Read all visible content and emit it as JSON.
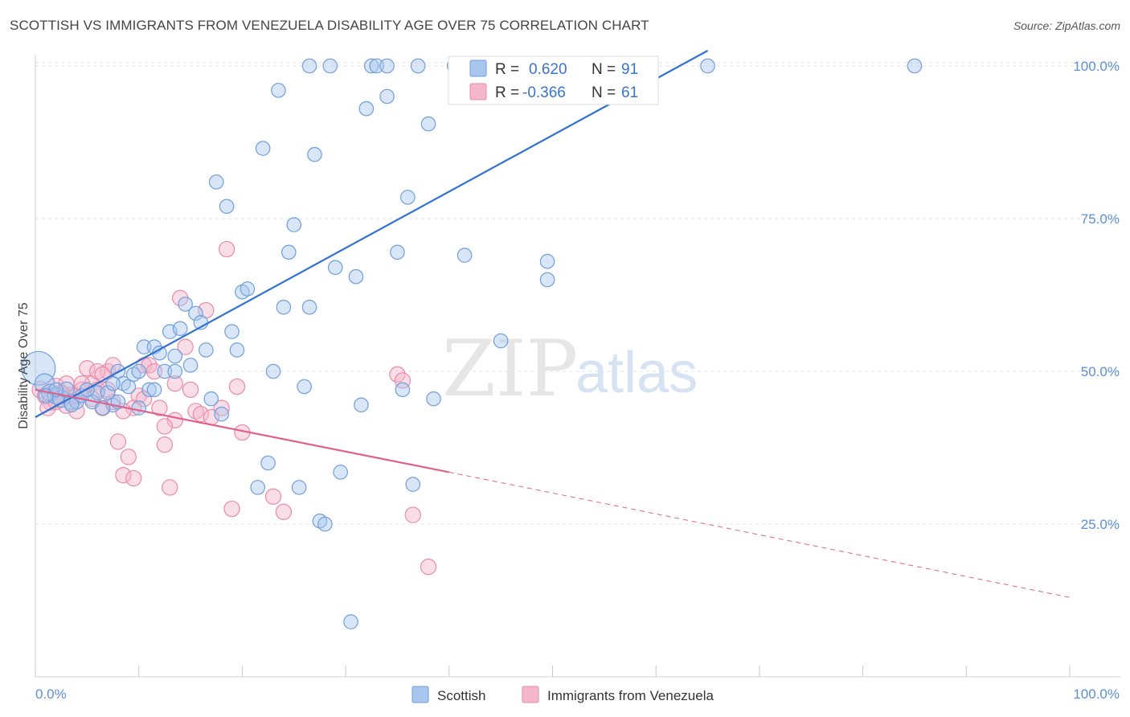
{
  "title": "SCOTTISH VS IMMIGRANTS FROM VENEZUELA DISABILITY AGE OVER 75 CORRELATION CHART",
  "source": "Source: ZipAtlas.com",
  "watermark": {
    "zip": "ZIP",
    "atlas": "atlas"
  },
  "legend": {
    "r_label": "R =",
    "n_label": "N =",
    "entries": [
      {
        "name": "Scottish",
        "r": "0.620",
        "n": "91"
      },
      {
        "name": "Immigrants from Venezuela",
        "r": "-0.366",
        "n": "61"
      }
    ]
  },
  "colors": {
    "blue_fill": "#a9c7ee",
    "blue_stroke": "#6f9fdc",
    "blue_line": "#2f72d0",
    "pink_fill": "#f4b6ca",
    "pink_stroke": "#ea8aaa",
    "pink_line": "#e0608e",
    "grid": "#e3e3e3",
    "tick_text": "#5b8fd6"
  },
  "chart_data": {
    "type": "scatter",
    "title": "SCOTTISH VS IMMIGRANTS FROM VENEZUELA DISABILITY AGE OVER 75 CORRELATION CHART",
    "xlabel": "",
    "ylabel": "Disability Age Over 75",
    "xlim": [
      0,
      100
    ],
    "ylim": [
      0,
      102
    ],
    "x_tick_labels": [
      "0.0%",
      "100.0%"
    ],
    "y_ticks": [
      25,
      50,
      75,
      100
    ],
    "y_tick_labels": [
      "25.0%",
      "50.0%",
      "75.0%",
      "100.0%"
    ],
    "grid": true,
    "legend_position": "top-center",
    "series": [
      {
        "name": "Scottish",
        "r": 0.62,
        "n": 91,
        "trend": {
          "x0": 0,
          "y0": 42.5,
          "x1": 65,
          "y1": 102.5
        },
        "points": [
          [
            0.3,
            50.5,
            24
          ],
          [
            0.9,
            48,
            14
          ],
          [
            1.4,
            46.5,
            12
          ],
          [
            2,
            46,
            12
          ],
          [
            2.5,
            45.5,
            12
          ],
          [
            3,
            47,
            11
          ],
          [
            3.5,
            45,
            11
          ],
          [
            4,
            45,
            10
          ],
          [
            4.5,
            46,
            10
          ],
          [
            5.5,
            45,
            10
          ],
          [
            6,
            46.5,
            10
          ],
          [
            7,
            46.5,
            10
          ],
          [
            7.5,
            44.5,
            10
          ],
          [
            8,
            50,
            10
          ],
          [
            8.5,
            48,
            10
          ],
          [
            9,
            47.5,
            10
          ],
          [
            9.5,
            49.5,
            10
          ],
          [
            10,
            50,
            10
          ],
          [
            10.5,
            54,
            10
          ],
          [
            11,
            47,
            10
          ],
          [
            11.5,
            54,
            10
          ],
          [
            12,
            53,
            10
          ],
          [
            12.5,
            50,
            10
          ],
          [
            13,
            56.5,
            10
          ],
          [
            13.5,
            52.5,
            10
          ],
          [
            14,
            57,
            10
          ],
          [
            14.5,
            61,
            10
          ],
          [
            15,
            51,
            10
          ],
          [
            15.5,
            59.5,
            10
          ],
          [
            16,
            58,
            10
          ],
          [
            16.5,
            53.5,
            10
          ],
          [
            17,
            45.5,
            10
          ],
          [
            17.5,
            81,
            10
          ],
          [
            18,
            43,
            10
          ],
          [
            18.5,
            77,
            10
          ],
          [
            19,
            56.5,
            10
          ],
          [
            19.5,
            53.5,
            10
          ],
          [
            20,
            63,
            10
          ],
          [
            20.5,
            63.5,
            10
          ],
          [
            21.5,
            31,
            10
          ],
          [
            22,
            86.5,
            10
          ],
          [
            22.5,
            35,
            10
          ],
          [
            23,
            50,
            10
          ],
          [
            23.5,
            96,
            10
          ],
          [
            24,
            60.5,
            10
          ],
          [
            24.5,
            69.5,
            10
          ],
          [
            25,
            74,
            10
          ],
          [
            25.5,
            31,
            10
          ],
          [
            26,
            47.5,
            10
          ],
          [
            26.5,
            60.5,
            10
          ],
          [
            27,
            85.5,
            10
          ],
          [
            27.5,
            25.5,
            10
          ],
          [
            28,
            25,
            10
          ],
          [
            28.5,
            100,
            10
          ],
          [
            29,
            67,
            10
          ],
          [
            29.5,
            33.5,
            10
          ],
          [
            30.5,
            9,
            10
          ],
          [
            31,
            65.5,
            10
          ],
          [
            31.5,
            44.5,
            10
          ],
          [
            32,
            93,
            10
          ],
          [
            32.5,
            100,
            10
          ],
          [
            33,
            100,
            10
          ],
          [
            34,
            95,
            10
          ],
          [
            35,
            69.5,
            10
          ],
          [
            35.5,
            47,
            10
          ],
          [
            36,
            78.5,
            10
          ],
          [
            36.5,
            31.5,
            10
          ],
          [
            37,
            100,
            10
          ],
          [
            38,
            90.5,
            10
          ],
          [
            38.5,
            45.5,
            10
          ],
          [
            40.5,
            100,
            10
          ],
          [
            41.5,
            69,
            10
          ],
          [
            45,
            55,
            10
          ],
          [
            47,
            100,
            10
          ],
          [
            49.5,
            68,
            10
          ],
          [
            49.5,
            65,
            10
          ],
          [
            59.5,
            100,
            10
          ],
          [
            65,
            100,
            10
          ],
          [
            85,
            100,
            10
          ],
          [
            26.5,
            100,
            10
          ],
          [
            34,
            100,
            10
          ],
          [
            13.5,
            50,
            10
          ],
          [
            8,
            45,
            10
          ],
          [
            10,
            44,
            10
          ],
          [
            3.5,
            44.5,
            10
          ],
          [
            6.5,
            44,
            10
          ],
          [
            5,
            47,
            10
          ],
          [
            2,
            47,
            10
          ],
          [
            1,
            46,
            10
          ],
          [
            7.5,
            48,
            10
          ],
          [
            11.5,
            47,
            10
          ]
        ]
      },
      {
        "name": "Immigrants from Venezuela",
        "r": -0.366,
        "n": 61,
        "trend": {
          "x0": 0,
          "y0": 47,
          "x1": 40,
          "y1": 33.5,
          "dashed_to_x": 100,
          "dashed_to_y": 13
        },
        "points": [
          [
            0.5,
            47,
            12
          ],
          [
            1,
            46,
            12
          ],
          [
            1.5,
            45,
            12
          ],
          [
            2,
            47.5,
            12
          ],
          [
            2.5,
            46,
            12
          ],
          [
            3,
            44.5,
            12
          ],
          [
            3.5,
            46,
            12
          ],
          [
            4,
            43.5,
            11
          ],
          [
            4.5,
            47,
            11
          ],
          [
            5,
            50.5,
            11
          ],
          [
            5.5,
            48,
            11
          ],
          [
            6,
            47,
            11
          ],
          [
            6.5,
            44,
            11
          ],
          [
            7,
            50,
            11
          ],
          [
            7.5,
            51,
            11
          ],
          [
            8,
            38.5,
            11
          ],
          [
            8.5,
            33,
            11
          ],
          [
            9,
            36,
            11
          ],
          [
            9.5,
            32.5,
            11
          ],
          [
            10,
            46,
            11
          ],
          [
            10.5,
            51,
            11
          ],
          [
            11,
            51,
            11
          ],
          [
            11.5,
            50,
            11
          ],
          [
            12,
            44,
            11
          ],
          [
            12.5,
            38,
            11
          ],
          [
            13,
            31,
            11
          ],
          [
            13.5,
            42,
            11
          ],
          [
            14,
            62,
            11
          ],
          [
            14.5,
            54,
            11
          ],
          [
            15,
            47,
            11
          ],
          [
            15.5,
            43.5,
            11
          ],
          [
            16,
            43,
            11
          ],
          [
            16.5,
            60,
            11
          ],
          [
            17,
            42.5,
            11
          ],
          [
            18,
            44,
            11
          ],
          [
            18.5,
            70,
            11
          ],
          [
            19,
            27.5,
            11
          ],
          [
            19.5,
            47.5,
            11
          ],
          [
            20,
            40,
            11
          ],
          [
            23,
            29.5,
            11
          ],
          [
            24,
            27,
            11
          ],
          [
            35,
            49.5,
            11
          ],
          [
            35.5,
            48.5,
            11
          ],
          [
            36.5,
            26.5,
            11
          ],
          [
            38,
            18,
            11
          ],
          [
            6,
            50,
            11
          ],
          [
            7.5,
            45,
            11
          ],
          [
            9.5,
            44,
            11
          ],
          [
            13.5,
            48,
            11
          ],
          [
            3,
            48,
            11
          ],
          [
            2.5,
            46.5,
            11
          ],
          [
            4,
            46,
            11
          ],
          [
            1.2,
            44,
            11
          ],
          [
            5.5,
            45.5,
            11
          ],
          [
            8.5,
            43.5,
            11
          ],
          [
            10.5,
            45.5,
            11
          ],
          [
            12.5,
            41,
            11
          ],
          [
            6.5,
            49.5,
            11
          ],
          [
            4.5,
            48,
            11
          ],
          [
            2,
            45,
            11
          ],
          [
            7,
            47,
            11
          ]
        ]
      }
    ]
  }
}
